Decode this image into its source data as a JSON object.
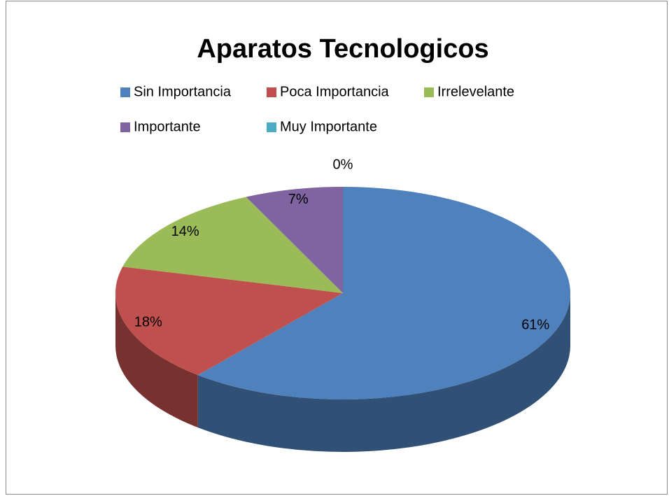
{
  "chart_data": {
    "type": "pie",
    "title": "Aparatos Tecnologicos",
    "categories": [
      "Sin Importancia",
      "Poca Importancia",
      "Irrelevelante",
      "Importante",
      "Muy Importante"
    ],
    "values": [
      61,
      18,
      14,
      7,
      0
    ],
    "value_labels": [
      "61%",
      "18%",
      "14%",
      "7%",
      "0%"
    ],
    "colors": [
      "#4f81bd",
      "#c0504d",
      "#9bbb59",
      "#8064a2",
      "#4bacc6"
    ],
    "legend": "top"
  }
}
